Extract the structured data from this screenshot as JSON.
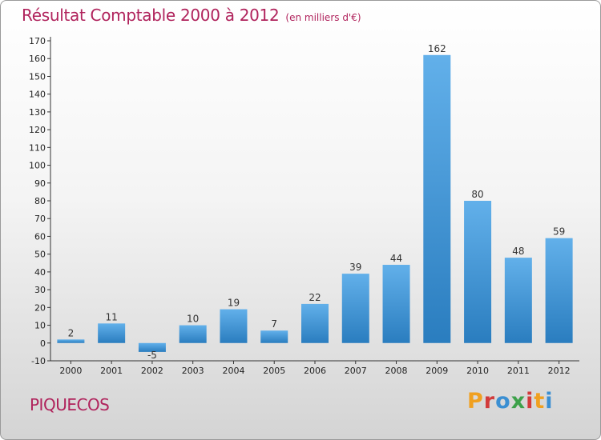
{
  "header": {
    "title": "Résultat Comptable 2000 à 2012",
    "subtitle": "(en milliers d'€)"
  },
  "footer": {
    "commune": "PIQUECOS",
    "brand": "Proxiti",
    "brand_colors": [
      "#f0a020",
      "#d23b3b",
      "#3b8fd2",
      "#3da14a",
      "#d23b3b",
      "#f0a020",
      "#3b8fd2"
    ]
  },
  "colors": {
    "title": "#b0235c",
    "bar_top": "#62b0ea",
    "bar_bottom": "#2a7dbf",
    "axis": "#333333"
  },
  "chart_data": {
    "type": "bar",
    "title": "Résultat Comptable 2000 à 2012",
    "subtitle": "(en milliers d'€)",
    "categories": [
      "2000",
      "2001",
      "2002",
      "2003",
      "2004",
      "2005",
      "2006",
      "2007",
      "2008",
      "2009",
      "2010",
      "2011",
      "2012"
    ],
    "values": [
      2,
      11,
      -5,
      10,
      19,
      7,
      22,
      39,
      44,
      162,
      80,
      48,
      59
    ],
    "ylim": [
      -10,
      170
    ],
    "yticks": [
      -10,
      0,
      10,
      20,
      30,
      40,
      50,
      60,
      70,
      80,
      90,
      100,
      110,
      120,
      130,
      140,
      150,
      160,
      170
    ],
    "xlabel": "",
    "ylabel": "",
    "grid": false,
    "legend": "none"
  }
}
